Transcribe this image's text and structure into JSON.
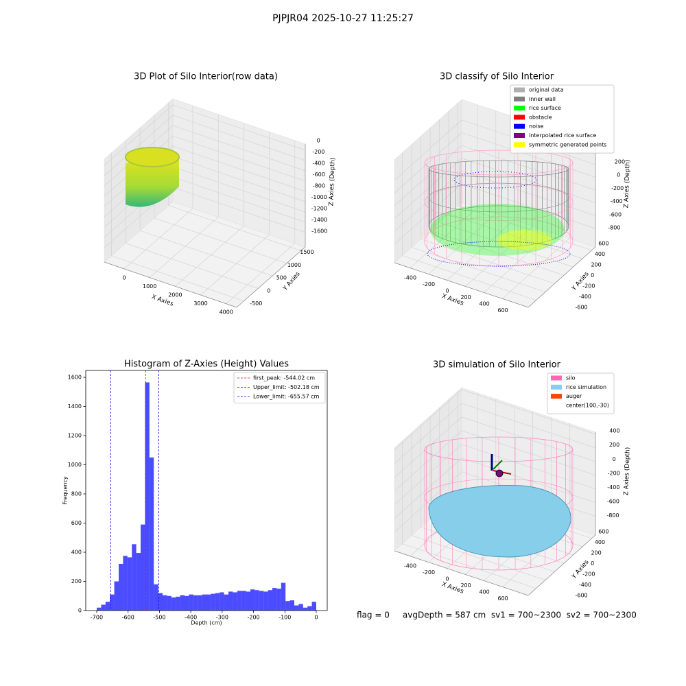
{
  "title": "PJPJR04 2025-10-27 11:25:27",
  "footer": "flag = 0     avgDepth = 587 cm  sv1 = 700~2300  sv2 = 700~2300",
  "chart_data": [
    {
      "type": "scatter3d",
      "title": "3D Plot of Silo Interior(row data)",
      "xlabel": "X Axies",
      "ylabel": "Y Axies",
      "zlabel": "Z Axies (Depth)",
      "xlim": [
        -780,
        4410
      ],
      "ylim": [
        -750,
        1650
      ],
      "zlim": [
        -1880,
        120
      ],
      "xticks": [
        0,
        1000,
        2000,
        3000,
        4000
      ],
      "yticks": [
        -500,
        0,
        500,
        1000,
        1500
      ],
      "zticks": [
        0,
        -200,
        -400,
        -600,
        -800,
        -1000,
        -1200,
        -1400,
        -1600
      ]
    },
    {
      "type": "scatter3d",
      "title": "3D classify of Silo Interior",
      "xlabel": "X Axies",
      "ylabel": "Y Axies",
      "zlabel": "Z Axies (Depth)",
      "xlim": [
        -570,
        880
      ],
      "ylim": [
        -770,
        680
      ],
      "zlim": [
        -1090,
        520
      ],
      "xticks": [
        -400,
        -200,
        0,
        200,
        400,
        600
      ],
      "yticks": [
        -600,
        -400,
        -200,
        0,
        200,
        400,
        600
      ],
      "zticks": [
        200,
        0,
        -200,
        -400,
        -600,
        -800
      ],
      "legend": {
        "position": "upper right",
        "entries": [
          {
            "name": "original data",
            "color": "#b0b0b0"
          },
          {
            "name": "inner wall",
            "color": "#808080"
          },
          {
            "name": "rice surface",
            "color": "#00ff00"
          },
          {
            "name": "obstacle",
            "color": "#ff0000"
          },
          {
            "name": "noise",
            "color": "#0000ff"
          },
          {
            "name": "interpolated rice surface",
            "color": "#800080"
          },
          {
            "name": "symmetric generated points",
            "color": "#ffff00"
          }
        ]
      }
    },
    {
      "type": "histogram",
      "title": "Histogram of Z-Axies (Height) Values",
      "xlabel": "Depth (cm)",
      "ylabel": "Frequency",
      "color": "#0000ff",
      "opacity": 0.7,
      "bins": [
        -700,
        -686,
        -672,
        -658,
        -644,
        -630,
        -616,
        -602,
        -588,
        -574,
        -560,
        -546,
        -532,
        -518,
        -504,
        -490,
        -476,
        -462,
        -448,
        -434,
        -420,
        -406,
        -392,
        -378,
        -364,
        -350,
        -336,
        -322,
        -308,
        -294,
        -280,
        -266,
        -252,
        -238,
        -224,
        -210,
        -196,
        -182,
        -168,
        -154,
        -140,
        -126,
        -112,
        -98,
        -84,
        -70,
        -56,
        -42,
        -28,
        -14,
        0
      ],
      "counts": [
        20,
        40,
        60,
        110,
        200,
        320,
        375,
        365,
        455,
        395,
        590,
        1565,
        1050,
        180,
        120,
        105,
        100,
        90,
        95,
        105,
        100,
        110,
        105,
        105,
        110,
        110,
        115,
        120,
        125,
        110,
        130,
        125,
        135,
        135,
        130,
        145,
        140,
        135,
        130,
        140,
        155,
        150,
        190,
        65,
        70,
        35,
        45,
        20,
        30,
        60
      ],
      "xlim": [
        -735,
        35
      ],
      "ylim": [
        0,
        1647
      ],
      "xticks": [
        -700,
        -600,
        -500,
        -400,
        -300,
        -200,
        -100,
        0
      ],
      "yticks": [
        0,
        200,
        400,
        600,
        800,
        1000,
        1200,
        1400,
        1600
      ],
      "vlines": [
        {
          "name": "first_peak: -544.02 cm",
          "value": -544.02,
          "color": "#ff0000"
        },
        {
          "name": "Upper_limit: -502.18 cm",
          "value": -502.18,
          "color": "#0000ff"
        },
        {
          "name": "Lower_limit: -655.57 cm",
          "value": -655.57,
          "color": "#0000ff"
        }
      ],
      "legend": {
        "position": "upper right"
      }
    },
    {
      "type": "surface3d",
      "title": "3D simulation of Silo Interior",
      "xlabel": "X Axies",
      "ylabel": "Y Axies",
      "zlabel": "Z Axies (Depth)",
      "xlim": [
        -570,
        880
      ],
      "ylim": [
        -770,
        680
      ],
      "zlim": [
        -1075,
        430
      ],
      "xticks": [
        -400,
        -200,
        0,
        200,
        400,
        600
      ],
      "yticks": [
        -600,
        -400,
        -200,
        0,
        200,
        400,
        600
      ],
      "zticks": [
        400,
        200,
        0,
        -200,
        -400,
        -600,
        -800
      ],
      "legend": {
        "position": "upper right",
        "entries": [
          {
            "name": "silo",
            "color": "#ff69b4"
          },
          {
            "name": "rice simulation",
            "color": "#87ceeb"
          },
          {
            "name": "auger",
            "color": "#ff4500"
          },
          {
            "name": "center(100,-30)",
            "color": "#ffffff"
          }
        ]
      }
    }
  ]
}
